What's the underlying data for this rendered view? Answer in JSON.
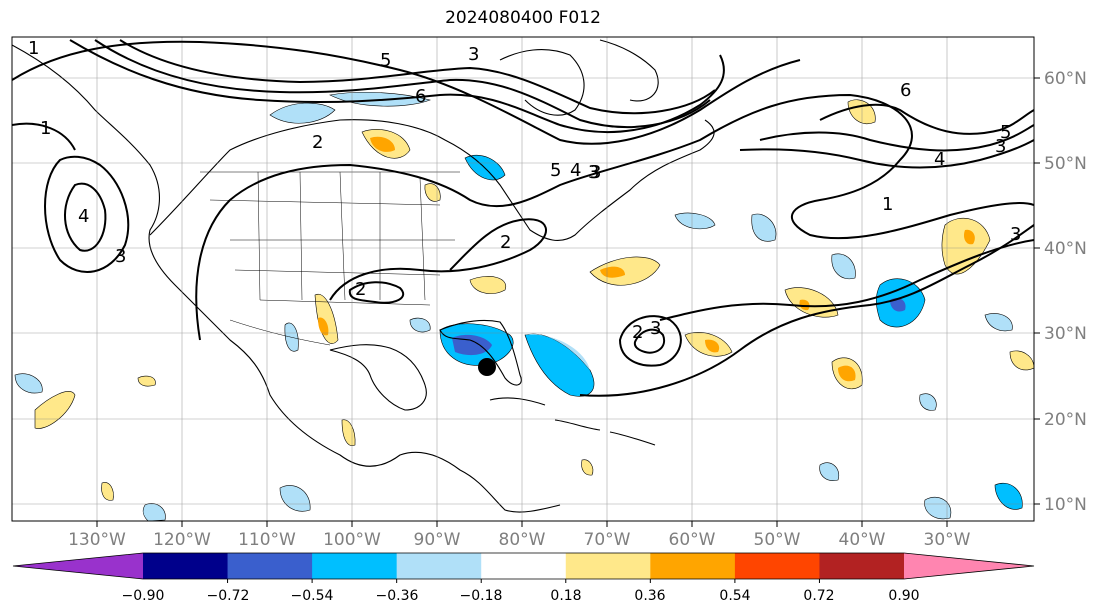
{
  "title": "2024080400 F012",
  "map": {
    "lon_labels": [
      "130°W",
      "120°W",
      "110°W",
      "100°W",
      "90°W",
      "80°W",
      "70°W",
      "60°W",
      "50°W",
      "40°W",
      "30°W"
    ],
    "lat_labels": [
      "60°N",
      "50°N",
      "40°N",
      "30°N",
      "20°N",
      "10°N"
    ],
    "contour_labels": [
      "1",
      "1",
      "4",
      "3",
      "3",
      "5",
      "6",
      "2",
      "2",
      "3",
      "5",
      "4",
      "3",
      "2",
      "6",
      "5",
      "4",
      "3",
      "1",
      "3",
      "2",
      "3"
    ],
    "storm_marker": "storm-center"
  },
  "colorbar": {
    "ticks": [
      "−0.90",
      "−0.72",
      "−0.54",
      "−0.36",
      "−0.18",
      "0.18",
      "0.36",
      "0.54",
      "0.72",
      "0.90"
    ],
    "colors": [
      "#9932cc",
      "#00008b",
      "#3a5fcd",
      "#00bfff",
      "#b0e0f8",
      "#ffffff",
      "#ffe88a",
      "#ffa500",
      "#ff4500",
      "#b22222",
      "#ff85b0"
    ]
  }
}
